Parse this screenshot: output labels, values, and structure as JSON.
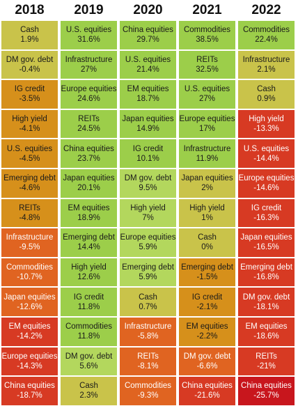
{
  "chart_data": {
    "type": "table",
    "title": "",
    "columns": [
      {
        "year": "2018",
        "items": [
          {
            "asset": "Cash",
            "label": "1.9%",
            "value": 1.9
          },
          {
            "asset": "DM gov. debt",
            "label": "-0.4%",
            "value": -0.4
          },
          {
            "asset": "IG credit",
            "label": "-3.5%",
            "value": -3.5
          },
          {
            "asset": "High yield",
            "label": "-4.1%",
            "value": -4.1
          },
          {
            "asset": "U.S. equities",
            "label": "-4.5%",
            "value": -4.5
          },
          {
            "asset": "Emerging debt",
            "label": "-4.6%",
            "value": -4.6
          },
          {
            "asset": "REITs",
            "label": "-4.8%",
            "value": -4.8
          },
          {
            "asset": "Infrastructure",
            "label": "-9.5%",
            "value": -9.5
          },
          {
            "asset": "Commodities",
            "label": "-10.7%",
            "value": -10.7
          },
          {
            "asset": "Japan equities",
            "label": "-12.6%",
            "value": -12.6
          },
          {
            "asset": "EM equities",
            "label": "-14.2%",
            "value": -14.2
          },
          {
            "asset": "Europe equities",
            "label": "-14.3%",
            "value": -14.3
          },
          {
            "asset": "China equities",
            "label": "-18.7%",
            "value": -18.7
          }
        ]
      },
      {
        "year": "2019",
        "items": [
          {
            "asset": "U.S. equities",
            "label": "31.6%",
            "value": 31.6
          },
          {
            "asset": "Infrastructure",
            "label": "27%",
            "value": 27
          },
          {
            "asset": "Europe equities",
            "label": "24.6%",
            "value": 24.6
          },
          {
            "asset": "REITs",
            "label": "24.5%",
            "value": 24.5
          },
          {
            "asset": "China equities",
            "label": "23.7%",
            "value": 23.7
          },
          {
            "asset": "Japan equities",
            "label": "20.1%",
            "value": 20.1
          },
          {
            "asset": "EM equities",
            "label": "18.9%",
            "value": 18.9
          },
          {
            "asset": "Emerging debt",
            "label": "14.4%",
            "value": 14.4
          },
          {
            "asset": "High yield",
            "label": "12.6%",
            "value": 12.6
          },
          {
            "asset": "IG credit",
            "label": "11.8%",
            "value": 11.8
          },
          {
            "asset": "Commodities",
            "label": "11.8%",
            "value": 11.8
          },
          {
            "asset": "DM gov. debt",
            "label": "5.6%",
            "value": 5.6
          },
          {
            "asset": "Cash",
            "label": "2.3%",
            "value": 2.3
          }
        ]
      },
      {
        "year": "2020",
        "items": [
          {
            "asset": "China equities",
            "label": "29.7%",
            "value": 29.7
          },
          {
            "asset": "U.S. equities",
            "label": "21.4%",
            "value": 21.4
          },
          {
            "asset": "EM equities",
            "label": "18.7%",
            "value": 18.7
          },
          {
            "asset": "Japan equities",
            "label": "14.9%",
            "value": 14.9
          },
          {
            "asset": "IG credit",
            "label": "10.1%",
            "value": 10.1
          },
          {
            "asset": "DM gov. debt",
            "label": "9.5%",
            "value": 9.5
          },
          {
            "asset": "High yield",
            "label": "7%",
            "value": 7
          },
          {
            "asset": "Europe equities",
            "label": "5.9%",
            "value": 5.9
          },
          {
            "asset": "Emerging debt",
            "label": "5.9%",
            "value": 5.9
          },
          {
            "asset": "Cash",
            "label": "0.7%",
            "value": 0.7
          },
          {
            "asset": "Infrastructure",
            "label": "-5.8%",
            "value": -5.8
          },
          {
            "asset": "REITs",
            "label": "-8.1%",
            "value": -8.1
          },
          {
            "asset": "Commodities",
            "label": "-9.3%",
            "value": -9.3
          }
        ]
      },
      {
        "year": "2021",
        "items": [
          {
            "asset": "Commodities",
            "label": "38.5%",
            "value": 38.5
          },
          {
            "asset": "REITs",
            "label": "32.5%",
            "value": 32.5
          },
          {
            "asset": "U.S. equities",
            "label": "27%",
            "value": 27
          },
          {
            "asset": "Europe equities",
            "label": "17%",
            "value": 17
          },
          {
            "asset": "Infrastructure",
            "label": "11.9%",
            "value": 11.9
          },
          {
            "asset": "Japan equities",
            "label": "2%",
            "value": 2
          },
          {
            "asset": "High yield",
            "label": "1%",
            "value": 1
          },
          {
            "asset": "Cash",
            "label": "0%",
            "value": 0
          },
          {
            "asset": "Emerging debt",
            "label": "-1.5%",
            "value": -1.5
          },
          {
            "asset": "IG credit",
            "label": "-2.1%",
            "value": -2.1
          },
          {
            "asset": "EM equities",
            "label": "-2.2%",
            "value": -2.2
          },
          {
            "asset": "DM gov. debt",
            "label": "-6.6%",
            "value": -6.6
          },
          {
            "asset": "China equities",
            "label": "-21.6%",
            "value": -21.6
          }
        ]
      },
      {
        "year": "2022",
        "items": [
          {
            "asset": "Commodities",
            "label": "22.4%",
            "value": 22.4
          },
          {
            "asset": "Infrastructure",
            "label": "2.1%",
            "value": 2.1
          },
          {
            "asset": "Cash",
            "label": "0.9%",
            "value": 0.9
          },
          {
            "asset": "High yield",
            "label": "-13.3%",
            "value": -13.3
          },
          {
            "asset": "U.S. equities",
            "label": "-14.4%",
            "value": -14.4
          },
          {
            "asset": "Europe equities",
            "label": "-14.6%",
            "value": -14.6
          },
          {
            "asset": "IG credit",
            "label": "-16.3%",
            "value": -16.3
          },
          {
            "asset": "Japan equities",
            "label": "-16.5%",
            "value": -16.5
          },
          {
            "asset": "Emerging debt",
            "label": "-16.8%",
            "value": -16.8
          },
          {
            "asset": "DM gov. debt",
            "label": "-18.1%",
            "value": -18.1
          },
          {
            "asset": "EM equities",
            "label": "-18.6%",
            "value": -18.6
          },
          {
            "asset": "REITs",
            "label": "-21%",
            "value": -21
          },
          {
            "asset": "China equities",
            "label": "-25.7%",
            "value": -25.7
          }
        ]
      }
    ],
    "colors": {
      "strong_positive": "#9cce4a",
      "positive": "#b3d75d",
      "flat": "#c9c34a",
      "mild_negative": "#d6901b",
      "negative": "#e06421",
      "strong_negative": "#d73a23",
      "extreme_negative": "#c8161d",
      "light_text": "#ffffff",
      "dark_text": "#1a1a1a"
    }
  }
}
